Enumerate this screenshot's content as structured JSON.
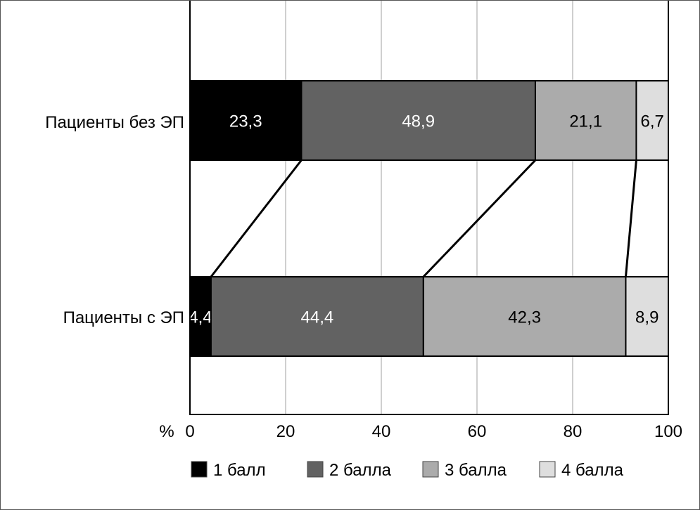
{
  "chart_data": {
    "type": "bar",
    "orientation": "horizontal",
    "stacked": true,
    "categories": [
      "Пациенты без ЭП",
      "Пациенты с ЭП"
    ],
    "series": [
      {
        "name": "1 балл",
        "values": [
          23.3,
          4.4
        ],
        "labels": [
          "23,3",
          "4,4"
        ],
        "color": "#000000",
        "label_color": "#ffffff"
      },
      {
        "name": "2 балла",
        "values": [
          48.9,
          44.4
        ],
        "labels": [
          "48,9",
          "44,4"
        ],
        "color": "#626262",
        "label_color": "#ffffff"
      },
      {
        "name": "3 балла",
        "values": [
          21.1,
          42.3
        ],
        "labels": [
          "21,1",
          "42,3"
        ],
        "color": "#ababab",
        "label_color": "#000000"
      },
      {
        "name": "4 балла",
        "values": [
          6.7,
          8.9
        ],
        "labels": [
          "6,7",
          "8,9"
        ],
        "color": "#dedede",
        "label_color": "#000000"
      }
    ],
    "xlabel": "%",
    "xlim": [
      0,
      100
    ],
    "xticks": [
      "0",
      "20",
      "40",
      "60",
      "80",
      "100"
    ],
    "grid": true,
    "connector_lines": true,
    "legend_position": "bottom"
  }
}
